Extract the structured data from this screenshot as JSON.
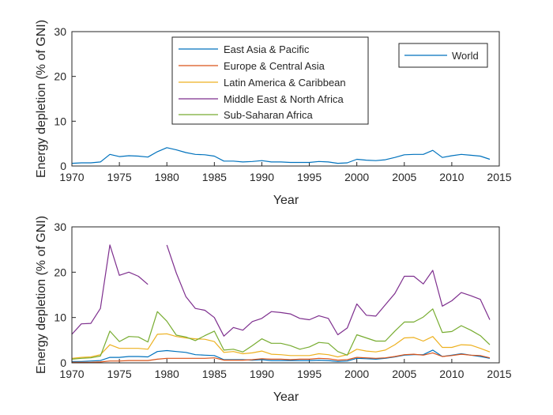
{
  "chart_data": [
    {
      "type": "line",
      "xlabel": "Year",
      "ylabel": "Energy depletion (% of GNI)",
      "xlim": [
        1970,
        2015
      ],
      "ylim": [
        0,
        30
      ],
      "xticks": [
        1970,
        1975,
        1980,
        1985,
        1990,
        1995,
        2000,
        2005,
        2010,
        2015
      ],
      "yticks": [
        0,
        10,
        20,
        30
      ],
      "grid": false,
      "x": [
        1970,
        1971,
        1972,
        1973,
        1974,
        1975,
        1976,
        1977,
        1978,
        1979,
        1980,
        1981,
        1982,
        1983,
        1984,
        1985,
        1986,
        1987,
        1988,
        1989,
        1990,
        1991,
        1992,
        1993,
        1994,
        1995,
        1996,
        1997,
        1998,
        1999,
        2000,
        2001,
        2002,
        2003,
        2004,
        2005,
        2006,
        2007,
        2008,
        2009,
        2010,
        2011,
        2012,
        2013,
        2014
      ],
      "legend_position": "top-right",
      "series": [
        {
          "name": "World",
          "color": "#0072BD",
          "values": [
            0.6,
            0.7,
            0.7,
            0.9,
            2.6,
            2.1,
            2.3,
            2.2,
            2.0,
            3.2,
            4.1,
            3.6,
            3.0,
            2.6,
            2.5,
            2.2,
            1.1,
            1.1,
            0.9,
            1.0,
            1.2,
            0.9,
            0.9,
            0.8,
            0.8,
            0.8,
            1.0,
            0.9,
            0.6,
            0.7,
            1.5,
            1.3,
            1.2,
            1.4,
            1.9,
            2.5,
            2.6,
            2.6,
            3.5,
            1.9,
            2.3,
            2.6,
            2.4,
            2.2,
            1.5
          ]
        }
      ]
    },
    {
      "type": "line",
      "xlabel": "Year",
      "ylabel": "Energy depletion (% of GNI)",
      "xlim": [
        1970,
        2015
      ],
      "ylim": [
        0,
        30
      ],
      "xticks": [
        1970,
        1975,
        1980,
        1985,
        1990,
        1995,
        2000,
        2005,
        2010,
        2015
      ],
      "yticks": [
        0,
        10,
        20,
        30
      ],
      "grid": false,
      "x": [
        1970,
        1971,
        1972,
        1973,
        1974,
        1975,
        1976,
        1977,
        1978,
        1979,
        1980,
        1981,
        1982,
        1983,
        1984,
        1985,
        1986,
        1987,
        1988,
        1989,
        1990,
        1991,
        1992,
        1993,
        1994,
        1995,
        1996,
        1997,
        1998,
        1999,
        2000,
        2001,
        2002,
        2003,
        2004,
        2005,
        2006,
        2007,
        2008,
        2009,
        2010,
        2011,
        2012,
        2013,
        2014
      ],
      "legend_position": "top",
      "series": [
        {
          "name": "East Asia & Pacific",
          "color": "#0072BD",
          "values": [
            0.3,
            0.3,
            0.4,
            0.5,
            1.2,
            1.2,
            1.4,
            1.4,
            1.3,
            2.5,
            2.7,
            2.5,
            2.3,
            1.8,
            1.7,
            1.6,
            0.7,
            0.7,
            0.7,
            0.6,
            0.7,
            0.5,
            0.5,
            0.5,
            0.5,
            0.5,
            0.6,
            0.5,
            0.3,
            0.4,
            1.0,
            0.9,
            0.8,
            1.0,
            1.3,
            1.7,
            1.8,
            1.8,
            2.8,
            1.4,
            1.7,
            2.0,
            1.7,
            1.4,
            1.0
          ]
        },
        {
          "name": "Europe & Central Asia",
          "color": "#D95319",
          "values": [
            0.1,
            0.1,
            0.1,
            0.2,
            0.4,
            0.4,
            0.5,
            0.5,
            0.5,
            0.8,
            1.0,
            1.0,
            1.0,
            1.0,
            1.0,
            1.1,
            0.6,
            0.6,
            0.6,
            0.7,
            0.9,
            0.8,
            0.8,
            0.7,
            0.8,
            0.8,
            1.0,
            0.9,
            0.6,
            0.7,
            1.2,
            1.1,
            1.0,
            1.1,
            1.4,
            1.8,
            1.9,
            1.7,
            2.2,
            1.4,
            1.6,
            1.9,
            1.7,
            1.6,
            1.1
          ]
        },
        {
          "name": "Latin America & Caribbean",
          "color": "#EDB120",
          "values": [
            1.0,
            1.2,
            1.3,
            1.8,
            4.0,
            3.2,
            3.2,
            3.2,
            3.0,
            6.3,
            6.4,
            5.8,
            5.5,
            5.3,
            5.2,
            4.7,
            2.3,
            2.5,
            2.0,
            2.2,
            2.6,
            1.9,
            1.8,
            1.6,
            1.6,
            1.6,
            2.0,
            1.8,
            1.3,
            1.8,
            3.0,
            2.6,
            2.4,
            2.8,
            4.0,
            5.5,
            5.6,
            4.8,
            5.8,
            3.4,
            3.4,
            4.0,
            3.9,
            3.2,
            2.4
          ]
        },
        {
          "name": "Middle East & North Africa",
          "color": "#7E2F8E",
          "values": [
            6.3,
            8.6,
            8.7,
            12.0,
            26.0,
            19.3,
            20.0,
            19.1,
            17.3,
            null,
            26.0,
            19.8,
            14.6,
            12.0,
            11.6,
            10.0,
            5.9,
            7.8,
            7.2,
            9.1,
            9.8,
            11.3,
            11.1,
            10.8,
            9.8,
            9.5,
            10.4,
            9.8,
            6.2,
            7.7,
            13.0,
            10.5,
            10.3,
            12.8,
            15.3,
            19.1,
            19.1,
            17.4,
            20.4,
            12.5,
            13.7,
            15.5,
            14.8,
            14.0,
            9.5
          ]
        },
        {
          "name": "Sub-Saharan Africa",
          "color": "#77AC30",
          "values": [
            0.8,
            1.0,
            1.1,
            1.5,
            7.0,
            4.7,
            5.8,
            5.7,
            4.6,
            11.3,
            9.2,
            6.1,
            5.7,
            4.9,
            6.0,
            7.0,
            2.8,
            3.0,
            2.4,
            3.8,
            5.3,
            4.3,
            4.3,
            3.8,
            3.0,
            3.5,
            4.5,
            4.3,
            2.5,
            1.7,
            6.2,
            5.5,
            4.8,
            4.8,
            7.0,
            9.0,
            9.0,
            10.1,
            11.9,
            6.7,
            6.9,
            8.2,
            7.2,
            6.0,
            4.0
          ]
        }
      ]
    }
  ]
}
